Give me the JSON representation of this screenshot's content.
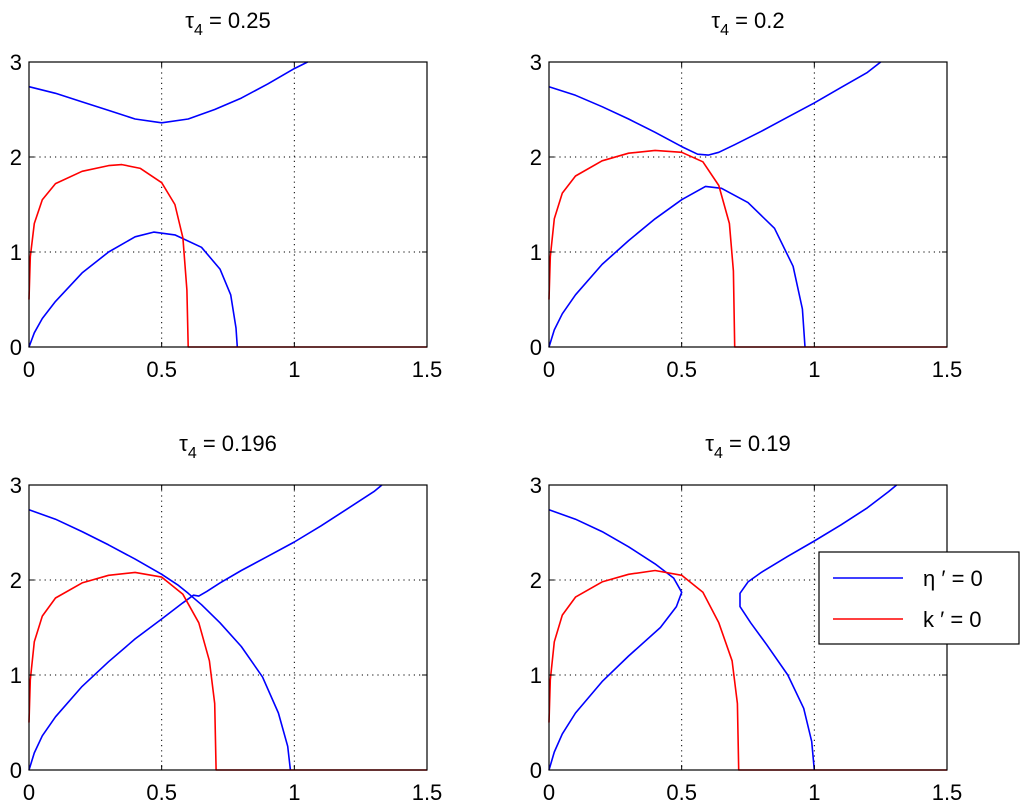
{
  "chart_data": [
    {
      "type": "line",
      "title": {
        "symbol": "τ",
        "subscript": "4",
        "suffix": " = 0.25"
      },
      "xlim": [
        0,
        1.5
      ],
      "ylim": [
        0,
        3
      ],
      "xticks": [
        0,
        0.5,
        1,
        1.5
      ],
      "xtick_labels": [
        "0",
        "0.5",
        "1",
        "1.5"
      ],
      "yticks": [
        0,
        1,
        2,
        3
      ],
      "ytick_labels": [
        "0",
        "1",
        "2",
        "3"
      ],
      "grid": true,
      "legend": false,
      "series": [
        {
          "color": "#0000ff",
          "points": [
            [
              0,
              2.74
            ],
            [
              0.1,
              2.67
            ],
            [
              0.2,
              2.58
            ],
            [
              0.3,
              2.49
            ],
            [
              0.4,
              2.4
            ],
            [
              0.5,
              2.36
            ],
            [
              0.6,
              2.4
            ],
            [
              0.7,
              2.5
            ],
            [
              0.8,
              2.62
            ],
            [
              0.9,
              2.77
            ],
            [
              1.0,
              2.93
            ],
            [
              1.05,
              3.0
            ]
          ]
        },
        {
          "color": "#0000ff",
          "points": [
            [
              0,
              0
            ],
            [
              0.02,
              0.15
            ],
            [
              0.05,
              0.3
            ],
            [
              0.1,
              0.48
            ],
            [
              0.2,
              0.78
            ],
            [
              0.3,
              1.0
            ],
            [
              0.4,
              1.16
            ],
            [
              0.47,
              1.21
            ],
            [
              0.55,
              1.18
            ],
            [
              0.65,
              1.05
            ],
            [
              0.72,
              0.82
            ],
            [
              0.76,
              0.55
            ],
            [
              0.78,
              0.2
            ],
            [
              0.785,
              0
            ]
          ]
        },
        {
          "color": "#ff0000",
          "points": [
            [
              0,
              0.5
            ],
            [
              0.005,
              0.95
            ],
            [
              0.02,
              1.3
            ],
            [
              0.05,
              1.55
            ],
            [
              0.1,
              1.72
            ],
            [
              0.2,
              1.85
            ],
            [
              0.3,
              1.91
            ],
            [
              0.35,
              1.92
            ],
            [
              0.42,
              1.88
            ],
            [
              0.5,
              1.73
            ],
            [
              0.55,
              1.5
            ],
            [
              0.58,
              1.15
            ],
            [
              0.595,
              0.6
            ],
            [
              0.6,
              0
            ],
            [
              1.5,
              0
            ]
          ]
        }
      ]
    },
    {
      "type": "line",
      "title": {
        "symbol": "τ",
        "subscript": "4",
        "suffix": " = 0.2"
      },
      "xlim": [
        0,
        1.5
      ],
      "ylim": [
        0,
        3
      ],
      "xticks": [
        0,
        0.5,
        1,
        1.5
      ],
      "xtick_labels": [
        "0",
        "0.5",
        "1",
        "1.5"
      ],
      "yticks": [
        0,
        1,
        2,
        3
      ],
      "ytick_labels": [
        "0",
        "1",
        "2",
        "3"
      ],
      "grid": true,
      "legend": false,
      "series": [
        {
          "color": "#0000ff",
          "points": [
            [
              0,
              2.74
            ],
            [
              0.1,
              2.65
            ],
            [
              0.2,
              2.53
            ],
            [
              0.3,
              2.4
            ],
            [
              0.4,
              2.26
            ],
            [
              0.5,
              2.11
            ],
            [
              0.56,
              2.03
            ],
            [
              0.6,
              2.02
            ],
            [
              0.64,
              2.05
            ],
            [
              0.7,
              2.13
            ],
            [
              0.8,
              2.27
            ],
            [
              0.9,
              2.42
            ],
            [
              1.0,
              2.57
            ],
            [
              1.1,
              2.73
            ],
            [
              1.2,
              2.89
            ],
            [
              1.25,
              3.0
            ]
          ]
        },
        {
          "color": "#0000ff",
          "points": [
            [
              0,
              0
            ],
            [
              0.02,
              0.18
            ],
            [
              0.05,
              0.35
            ],
            [
              0.1,
              0.55
            ],
            [
              0.2,
              0.87
            ],
            [
              0.3,
              1.12
            ],
            [
              0.4,
              1.35
            ],
            [
              0.5,
              1.55
            ],
            [
              0.59,
              1.69
            ],
            [
              0.65,
              1.67
            ],
            [
              0.75,
              1.52
            ],
            [
              0.85,
              1.25
            ],
            [
              0.92,
              0.85
            ],
            [
              0.955,
              0.4
            ],
            [
              0.965,
              0
            ]
          ]
        },
        {
          "color": "#ff0000",
          "points": [
            [
              0,
              0.5
            ],
            [
              0.005,
              0.95
            ],
            [
              0.02,
              1.35
            ],
            [
              0.05,
              1.62
            ],
            [
              0.1,
              1.8
            ],
            [
              0.2,
              1.96
            ],
            [
              0.3,
              2.04
            ],
            [
              0.4,
              2.07
            ],
            [
              0.5,
              2.05
            ],
            [
              0.58,
              1.95
            ],
            [
              0.64,
              1.7
            ],
            [
              0.68,
              1.3
            ],
            [
              0.695,
              0.8
            ],
            [
              0.7,
              0
            ],
            [
              1.5,
              0
            ]
          ]
        }
      ]
    },
    {
      "type": "line",
      "title": {
        "symbol": "τ",
        "subscript": "4",
        "suffix": " = 0.196"
      },
      "xlim": [
        0,
        1.5
      ],
      "ylim": [
        0,
        3
      ],
      "xticks": [
        0,
        0.5,
        1,
        1.5
      ],
      "xtick_labels": [
        "0",
        "0.5",
        "1",
        "1.5"
      ],
      "yticks": [
        0,
        1,
        2,
        3
      ],
      "ytick_labels": [
        "0",
        "1",
        "2",
        "3"
      ],
      "grid": true,
      "legend": false,
      "series": [
        {
          "color": "#0000ff",
          "points": [
            [
              0,
              2.74
            ],
            [
              0.1,
              2.64
            ],
            [
              0.2,
              2.51
            ],
            [
              0.3,
              2.37
            ],
            [
              0.4,
              2.22
            ],
            [
              0.5,
              2.06
            ],
            [
              0.56,
              1.95
            ],
            [
              0.6,
              1.86
            ],
            [
              0.65,
              1.74
            ],
            [
              0.72,
              1.55
            ],
            [
              0.8,
              1.3
            ],
            [
              0.88,
              0.98
            ],
            [
              0.94,
              0.6
            ],
            [
              0.975,
              0.25
            ],
            [
              0.985,
              0
            ]
          ]
        },
        {
          "color": "#0000ff",
          "points": [
            [
              0,
              0
            ],
            [
              0.02,
              0.18
            ],
            [
              0.05,
              0.36
            ],
            [
              0.1,
              0.56
            ],
            [
              0.2,
              0.88
            ],
            [
              0.3,
              1.14
            ],
            [
              0.4,
              1.38
            ],
            [
              0.5,
              1.59
            ],
            [
              0.58,
              1.76
            ],
            [
              0.62,
              1.84
            ],
            [
              0.64,
              1.83
            ],
            [
              0.67,
              1.88
            ],
            [
              0.72,
              1.97
            ],
            [
              0.8,
              2.1
            ],
            [
              0.9,
              2.25
            ],
            [
              1.0,
              2.4
            ],
            [
              1.1,
              2.57
            ],
            [
              1.2,
              2.75
            ],
            [
              1.3,
              2.93
            ],
            [
              1.33,
              3.0
            ]
          ]
        },
        {
          "color": "#ff0000",
          "points": [
            [
              0,
              0.5
            ],
            [
              0.005,
              0.95
            ],
            [
              0.02,
              1.35
            ],
            [
              0.05,
              1.62
            ],
            [
              0.1,
              1.81
            ],
            [
              0.2,
              1.97
            ],
            [
              0.3,
              2.05
            ],
            [
              0.4,
              2.08
            ],
            [
              0.5,
              2.03
            ],
            [
              0.58,
              1.85
            ],
            [
              0.64,
              1.55
            ],
            [
              0.68,
              1.15
            ],
            [
              0.7,
              0.7
            ],
            [
              0.705,
              0
            ],
            [
              1.5,
              0
            ]
          ]
        }
      ]
    },
    {
      "type": "line",
      "title": {
        "symbol": "τ",
        "subscript": "4",
        "suffix": " = 0.19"
      },
      "xlim": [
        0,
        1.5
      ],
      "ylim": [
        0,
        3
      ],
      "xticks": [
        0,
        0.5,
        1,
        1.5
      ],
      "xtick_labels": [
        "0",
        "0.5",
        "1",
        "1.5"
      ],
      "yticks": [
        0,
        1,
        2,
        3
      ],
      "ytick_labels": [
        "0",
        "1",
        "2",
        "3"
      ],
      "grid": true,
      "legend": {
        "position": "right",
        "entries": [
          {
            "label": "η ′ = 0",
            "color": "#0000ff"
          },
          {
            "label": "k  ′ = 0",
            "color": "#ff0000"
          }
        ]
      },
      "series": [
        {
          "color": "#0000ff",
          "points": [
            [
              0,
              2.74
            ],
            [
              0.1,
              2.64
            ],
            [
              0.2,
              2.51
            ],
            [
              0.3,
              2.35
            ],
            [
              0.4,
              2.17
            ],
            [
              0.47,
              2.02
            ],
            [
              0.5,
              1.87
            ],
            [
              0.48,
              1.72
            ],
            [
              0.42,
              1.5
            ],
            [
              0.3,
              1.2
            ],
            [
              0.2,
              0.93
            ],
            [
              0.1,
              0.6
            ],
            [
              0.05,
              0.38
            ],
            [
              0.02,
              0.19
            ],
            [
              0,
              0
            ]
          ]
        },
        {
          "color": "#0000ff",
          "points": [
            [
              1.0,
              0
            ],
            [
              0.99,
              0.3
            ],
            [
              0.96,
              0.65
            ],
            [
              0.9,
              1.0
            ],
            [
              0.82,
              1.32
            ],
            [
              0.76,
              1.55
            ],
            [
              0.72,
              1.72
            ],
            [
              0.72,
              1.86
            ],
            [
              0.75,
              1.98
            ],
            [
              0.8,
              2.08
            ],
            [
              0.9,
              2.25
            ],
            [
              1.0,
              2.41
            ],
            [
              1.1,
              2.58
            ],
            [
              1.2,
              2.76
            ],
            [
              1.28,
              2.93
            ],
            [
              1.31,
              3.0
            ]
          ]
        },
        {
          "color": "#ff0000",
          "points": [
            [
              0,
              0.5
            ],
            [
              0.005,
              0.95
            ],
            [
              0.02,
              1.35
            ],
            [
              0.05,
              1.63
            ],
            [
              0.1,
              1.82
            ],
            [
              0.2,
              1.98
            ],
            [
              0.3,
              2.06
            ],
            [
              0.4,
              2.1
            ],
            [
              0.5,
              2.05
            ],
            [
              0.58,
              1.87
            ],
            [
              0.64,
              1.55
            ],
            [
              0.69,
              1.15
            ],
            [
              0.71,
              0.7
            ],
            [
              0.715,
              0
            ],
            [
              1.5,
              0
            ]
          ]
        }
      ]
    }
  ]
}
